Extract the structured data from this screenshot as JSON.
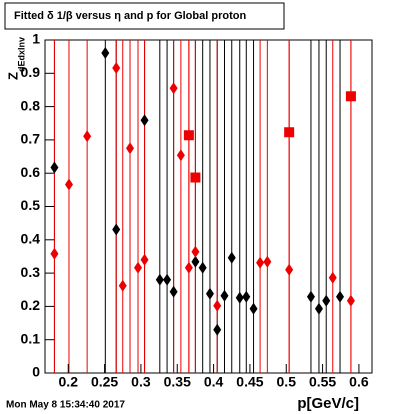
{
  "chart_data": {
    "type": "scatter",
    "title": "Fitted δ 1/β versus η and p for Global proton",
    "xlabel": "p[GeV/c]",
    "ylabel": "Z",
    "ylabel_subscript": "dEdxInv",
    "timestamp": "Mon May  8 15:34:40 2017",
    "xlim": [
      0.168,
      0.618
    ],
    "ylim": [
      0,
      1
    ],
    "xticks": [
      0.2,
      0.25,
      0.3,
      0.35,
      0.4,
      0.45,
      0.5,
      0.55,
      0.6
    ],
    "yticks": [
      0,
      0.1,
      0.2,
      0.3,
      0.4,
      0.5,
      0.6,
      0.7,
      0.8,
      0.9,
      1
    ],
    "series": [
      {
        "color": "#000000",
        "marker": "diamond",
        "x": [
          0.181,
          0.251,
          0.266,
          0.305,
          0.326,
          0.336,
          0.345,
          0.375,
          0.385,
          0.395,
          0.405,
          0.415,
          0.425,
          0.436,
          0.445,
          0.455,
          0.534,
          0.545,
          0.555,
          0.574
        ],
        "values": [
          0.617,
          0.961,
          0.431,
          0.759,
          0.28,
          0.28,
          0.244,
          0.334,
          0.316,
          0.238,
          0.13,
          0.232,
          0.346,
          0.226,
          0.229,
          0.193,
          0.229,
          0.193,
          0.217,
          0.229
        ]
      },
      {
        "color": "#ee0000",
        "marker": "diamond",
        "x": [
          0.181,
          0.201,
          0.226,
          0.266,
          0.275,
          0.285,
          0.296,
          0.305,
          0.345,
          0.355,
          0.366,
          0.375,
          0.405,
          0.464,
          0.474,
          0.504,
          0.564,
          0.589
        ],
        "values": [
          0.358,
          0.566,
          0.711,
          0.916,
          0.262,
          0.675,
          0.316,
          0.34,
          0.855,
          0.654,
          0.316,
          0.364,
          0.202,
          0.331,
          0.334,
          0.31,
          0.286,
          0.217
        ]
      },
      {
        "color": "#ee0000",
        "marker": "square",
        "x": [
          0.366,
          0.375,
          0.504,
          0.589
        ],
        "values": [
          0.714,
          0.587,
          0.723,
          0.831
        ]
      }
    ]
  }
}
